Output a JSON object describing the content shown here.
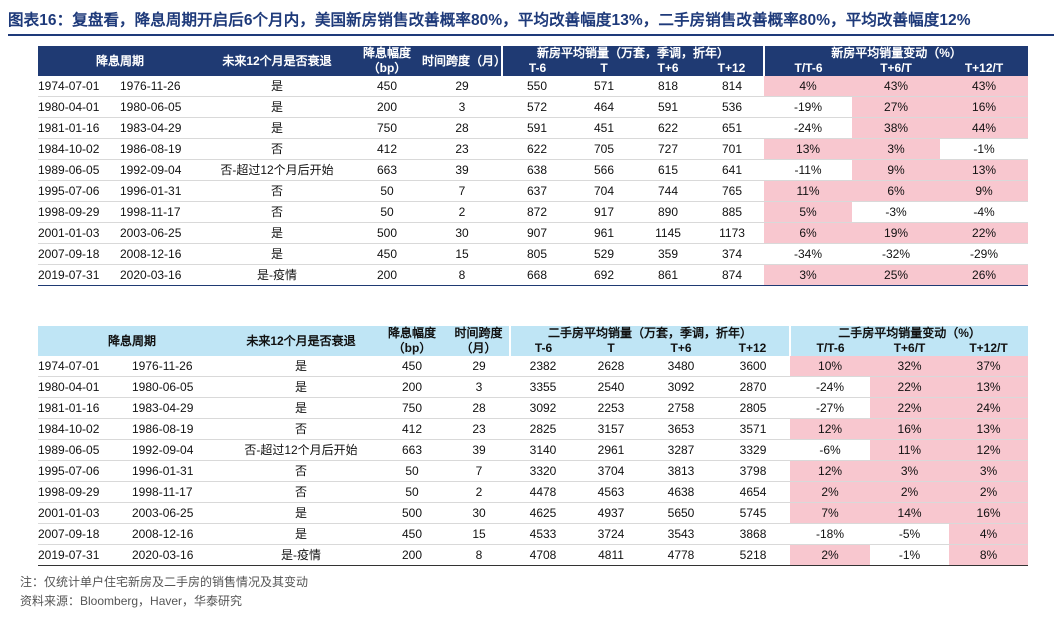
{
  "title": "图表16：复盘看，降息周期开启后6个月内，美国新房销售改善概率80%，平均改善幅度13%，二手房销售改善概率80%，平均改善幅度12%",
  "colors": {
    "header_dark": "#1f3a73",
    "header_light": "#bfe5f5",
    "positive_fill": "#f8c7cf"
  },
  "table1": {
    "headers": {
      "period": "降息周期",
      "recession": "未来12个月是否衰退",
      "cut": "降息幅度（bp）",
      "span": "时间跨度（月）",
      "avg_group": "新房平均销量（万套，季调，折年）",
      "chg_group": "新房平均销量变动（%）",
      "avg_cols": [
        "T-6",
        "T",
        "T+6",
        "T+12"
      ],
      "chg_cols": [
        "T/T-6",
        "T+6/T",
        "T+12/T"
      ]
    },
    "rows": [
      {
        "start": "1974-07-01",
        "end": "1976-11-26",
        "recession": "是",
        "cut": "450",
        "span": "29",
        "avg": [
          "550",
          "571",
          "818",
          "814"
        ],
        "chg": [
          "4%",
          "43%",
          "43%"
        ]
      },
      {
        "start": "1980-04-01",
        "end": "1980-06-05",
        "recession": "是",
        "cut": "200",
        "span": "3",
        "avg": [
          "572",
          "464",
          "591",
          "536"
        ],
        "chg": [
          "-19%",
          "27%",
          "16%"
        ]
      },
      {
        "start": "1981-01-16",
        "end": "1983-04-29",
        "recession": "是",
        "cut": "750",
        "span": "28",
        "avg": [
          "591",
          "451",
          "622",
          "651"
        ],
        "chg": [
          "-24%",
          "38%",
          "44%"
        ]
      },
      {
        "start": "1984-10-02",
        "end": "1986-08-19",
        "recession": "否",
        "cut": "412",
        "span": "23",
        "avg": [
          "622",
          "705",
          "727",
          "701"
        ],
        "chg": [
          "13%",
          "3%",
          "-1%"
        ]
      },
      {
        "start": "1989-06-05",
        "end": "1992-09-04",
        "recession": "否-超过12个月后开始",
        "cut": "663",
        "span": "39",
        "avg": [
          "638",
          "566",
          "615",
          "641"
        ],
        "chg": [
          "-11%",
          "9%",
          "13%"
        ]
      },
      {
        "start": "1995-07-06",
        "end": "1996-01-31",
        "recession": "否",
        "cut": "50",
        "span": "7",
        "avg": [
          "637",
          "704",
          "744",
          "765"
        ],
        "chg": [
          "11%",
          "6%",
          "9%"
        ]
      },
      {
        "start": "1998-09-29",
        "end": "1998-11-17",
        "recession": "否",
        "cut": "50",
        "span": "2",
        "avg": [
          "872",
          "917",
          "890",
          "885"
        ],
        "chg": [
          "5%",
          "-3%",
          "-4%"
        ]
      },
      {
        "start": "2001-01-03",
        "end": "2003-06-25",
        "recession": "是",
        "cut": "500",
        "span": "30",
        "avg": [
          "907",
          "961",
          "1145",
          "1173"
        ],
        "chg": [
          "6%",
          "19%",
          "22%"
        ]
      },
      {
        "start": "2007-09-18",
        "end": "2008-12-16",
        "recession": "是",
        "cut": "450",
        "span": "15",
        "avg": [
          "805",
          "529",
          "359",
          "374"
        ],
        "chg": [
          "-34%",
          "-32%",
          "-29%"
        ]
      },
      {
        "start": "2019-07-31",
        "end": "2020-03-16",
        "recession": "是-疫情",
        "cut": "200",
        "span": "8",
        "avg": [
          "668",
          "692",
          "861",
          "874"
        ],
        "chg": [
          "3%",
          "25%",
          "26%"
        ]
      }
    ]
  },
  "table2": {
    "headers": {
      "period": "降息周期",
      "recession": "未来12个月是否衰退",
      "cut": "降息幅度（bp）",
      "span": "时间跨度（月）",
      "avg_group": "二手房平均销量（万套，季调，折年）",
      "chg_group": "二手房平均销量变动（%）",
      "avg_cols": [
        "T-6",
        "T",
        "T+6",
        "T+12"
      ],
      "chg_cols": [
        "T/T-6",
        "T+6/T",
        "T+12/T"
      ]
    },
    "rows": [
      {
        "start": "1974-07-01",
        "end": "1976-11-26",
        "recession": "是",
        "cut": "450",
        "span": "29",
        "avg": [
          "2382",
          "2628",
          "3480",
          "3600"
        ],
        "chg": [
          "10%",
          "32%",
          "37%"
        ]
      },
      {
        "start": "1980-04-01",
        "end": "1980-06-05",
        "recession": "是",
        "cut": "200",
        "span": "3",
        "avg": [
          "3355",
          "2540",
          "3092",
          "2870"
        ],
        "chg": [
          "-24%",
          "22%",
          "13%"
        ]
      },
      {
        "start": "1981-01-16",
        "end": "1983-04-29",
        "recession": "是",
        "cut": "750",
        "span": "28",
        "avg": [
          "3092",
          "2253",
          "2758",
          "2805"
        ],
        "chg": [
          "-27%",
          "22%",
          "24%"
        ]
      },
      {
        "start": "1984-10-02",
        "end": "1986-08-19",
        "recession": "否",
        "cut": "412",
        "span": "23",
        "avg": [
          "2825",
          "3157",
          "3653",
          "3571"
        ],
        "chg": [
          "12%",
          "16%",
          "13%"
        ]
      },
      {
        "start": "1989-06-05",
        "end": "1992-09-04",
        "recession": "否-超过12个月后开始",
        "cut": "663",
        "span": "39",
        "avg": [
          "3140",
          "2961",
          "3287",
          "3329"
        ],
        "chg": [
          "-6%",
          "11%",
          "12%"
        ]
      },
      {
        "start": "1995-07-06",
        "end": "1996-01-31",
        "recession": "否",
        "cut": "50",
        "span": "7",
        "avg": [
          "3320",
          "3704",
          "3813",
          "3798"
        ],
        "chg": [
          "12%",
          "3%",
          "3%"
        ]
      },
      {
        "start": "1998-09-29",
        "end": "1998-11-17",
        "recession": "否",
        "cut": "50",
        "span": "2",
        "avg": [
          "4478",
          "4563",
          "4638",
          "4654"
        ],
        "chg": [
          "2%",
          "2%",
          "2%"
        ]
      },
      {
        "start": "2001-01-03",
        "end": "2003-06-25",
        "recession": "是",
        "cut": "500",
        "span": "30",
        "avg": [
          "4625",
          "4937",
          "5650",
          "5745"
        ],
        "chg": [
          "7%",
          "14%",
          "16%"
        ]
      },
      {
        "start": "2007-09-18",
        "end": "2008-12-16",
        "recession": "是",
        "cut": "450",
        "span": "15",
        "avg": [
          "4533",
          "3724",
          "3543",
          "3868"
        ],
        "chg": [
          "-18%",
          "-5%",
          "4%"
        ]
      },
      {
        "start": "2019-07-31",
        "end": "2020-03-16",
        "recession": "是-疫情",
        "cut": "200",
        "span": "8",
        "avg": [
          "4708",
          "4811",
          "4778",
          "5218"
        ],
        "chg": [
          "2%",
          "-1%",
          "8%"
        ]
      }
    ]
  },
  "footnotes": {
    "note": "注：仅统计单户住宅新房及二手房的销售情况及其变动",
    "source": "资料来源：Bloomberg，Haver，华泰研究"
  }
}
